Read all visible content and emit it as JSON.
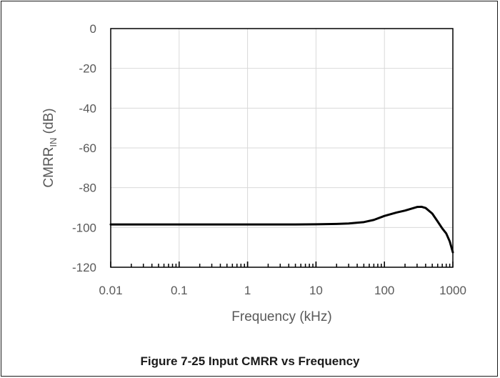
{
  "caption": "Figure 7-25 Input CMRR vs Frequency",
  "chart_data": {
    "type": "line",
    "xscale": "log",
    "xlabel": "Frequency (kHz)",
    "ylabel_main": "CMRR",
    "ylabel_sub": "IN",
    "ylabel_unit": " (dB)",
    "xlim": [
      0.01,
      1000
    ],
    "ylim": [
      -120,
      0
    ],
    "x_ticks": [
      0.01,
      0.1,
      1,
      10,
      100,
      1000
    ],
    "x_tick_labels": [
      "0.01",
      "0.1",
      "1",
      "10",
      "100",
      "1000"
    ],
    "y_ticks": [
      0,
      -20,
      -40,
      -60,
      -80,
      -100,
      -120
    ],
    "y_tick_labels": [
      "0",
      "-20",
      "-40",
      "-60",
      "-80",
      "-100",
      "-120"
    ],
    "grid": true,
    "colors": {
      "line": "#000000",
      "grid": "#d9d9d9",
      "axis": "#000000"
    },
    "series": [
      {
        "x": [
          0.01,
          0.1,
          1,
          5,
          10,
          20,
          30,
          50,
          70,
          100,
          150,
          200,
          300,
          350,
          400,
          500,
          600,
          700,
          800,
          900,
          1000
        ],
        "y": [
          -98.5,
          -98.5,
          -98.5,
          -98.5,
          -98.4,
          -98.2,
          -98.0,
          -97.3,
          -96.2,
          -94.2,
          -92.5,
          -91.5,
          -89.7,
          -89.6,
          -90.2,
          -93.0,
          -97.0,
          -100.5,
          -103.0,
          -107.0,
          -112.5
        ]
      }
    ]
  }
}
